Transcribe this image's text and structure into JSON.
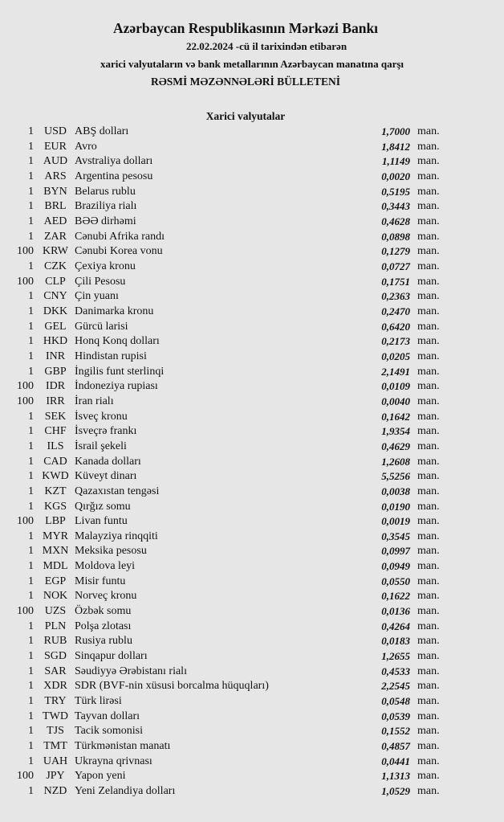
{
  "header": {
    "title": "Azərbaycan Respublikasının Mərkəzi Bankı",
    "date_line": "22.02.2024  -cü il tarixindən etibarən",
    "subtitle": "xarici valyutaların və bank metallarının Azərbaycan manatına qarşı",
    "bulletin": "RƏSMİ MƏZƏNNƏLƏRİ BÜLLETENİ",
    "section": "Xarici valyutalar"
  },
  "rates": [
    {
      "nominal": "1",
      "code": "USD",
      "name": "ABŞ dolları",
      "value": "1,7000",
      "unit": "man."
    },
    {
      "nominal": "1",
      "code": "EUR",
      "name": "Avro",
      "value": "1,8412",
      "unit": "man."
    },
    {
      "nominal": "1",
      "code": "AUD",
      "name": "Avstraliya dolları",
      "value": "1,1149",
      "unit": "man."
    },
    {
      "nominal": "1",
      "code": "ARS",
      "name": "Argentina pesosu",
      "value": "0,0020",
      "unit": "man."
    },
    {
      "nominal": "1",
      "code": "BYN",
      "name": "Belarus rublu",
      "value": "0,5195",
      "unit": "man."
    },
    {
      "nominal": "1",
      "code": "BRL",
      "name": "Braziliya rialı",
      "value": "0,3443",
      "unit": "man."
    },
    {
      "nominal": "1",
      "code": "AED",
      "name": "BƏƏ dirhəmi",
      "value": "0,4628",
      "unit": "man."
    },
    {
      "nominal": "1",
      "code": "ZAR",
      "name": "Cənubi Afrika randı",
      "value": "0,0898",
      "unit": "man."
    },
    {
      "nominal": "100",
      "code": "KRW",
      "name": "Cənubi Korea vonu",
      "value": "0,1279",
      "unit": "man."
    },
    {
      "nominal": "1",
      "code": "CZK",
      "name": "Çexiya kronu",
      "value": "0,0727",
      "unit": "man."
    },
    {
      "nominal": "100",
      "code": "CLP",
      "name": "Çili Pesosu",
      "value": "0,1751",
      "unit": "man."
    },
    {
      "nominal": "1",
      "code": "CNY",
      "name": "Çin yuanı",
      "value": "0,2363",
      "unit": "man."
    },
    {
      "nominal": "1",
      "code": "DKK",
      "name": "Danimarka kronu",
      "value": "0,2470",
      "unit": "man."
    },
    {
      "nominal": "1",
      "code": "GEL",
      "name": "Gürcü larisi",
      "value": "0,6420",
      "unit": "man."
    },
    {
      "nominal": "1",
      "code": "HKD",
      "name": "Honq Konq dolları",
      "value": "0,2173",
      "unit": "man."
    },
    {
      "nominal": "1",
      "code": "INR",
      "name": "Hindistan rupisi",
      "value": "0,0205",
      "unit": "man."
    },
    {
      "nominal": "1",
      "code": "GBP",
      "name": "İngilis funt sterlinqi",
      "value": "2,1491",
      "unit": "man."
    },
    {
      "nominal": "100",
      "code": "IDR",
      "name": "İndoneziya rupiası",
      "value": "0,0109",
      "unit": "man."
    },
    {
      "nominal": "100",
      "code": "IRR",
      "name": "İran rialı",
      "value": "0,0040",
      "unit": "man."
    },
    {
      "nominal": "1",
      "code": "SEK",
      "name": "İsveç kronu",
      "value": "0,1642",
      "unit": "man."
    },
    {
      "nominal": "1",
      "code": "CHF",
      "name": "İsveçrə frankı",
      "value": "1,9354",
      "unit": "man."
    },
    {
      "nominal": "1",
      "code": "ILS",
      "name": "İsrail şekeli",
      "value": "0,4629",
      "unit": "man."
    },
    {
      "nominal": "1",
      "code": "CAD",
      "name": "Kanada dolları",
      "value": "1,2608",
      "unit": "man."
    },
    {
      "nominal": "1",
      "code": "KWD",
      "name": "Küveyt dinarı",
      "value": "5,5256",
      "unit": "man."
    },
    {
      "nominal": "1",
      "code": "KZT",
      "name": "Qazaxıstan tengəsi",
      "value": "0,0038",
      "unit": "man."
    },
    {
      "nominal": "1",
      "code": "KGS",
      "name": "Qırğız somu",
      "value": "0,0190",
      "unit": "man."
    },
    {
      "nominal": "100",
      "code": "LBP",
      "name": "Livan funtu",
      "value": "0,0019",
      "unit": "man."
    },
    {
      "nominal": "1",
      "code": "MYR",
      "name": "Malayziya rinqqiti",
      "value": "0,3545",
      "unit": "man."
    },
    {
      "nominal": "1",
      "code": "MXN",
      "name": "Meksika pesosu",
      "value": "0,0997",
      "unit": "man."
    },
    {
      "nominal": "1",
      "code": "MDL",
      "name": "Moldova leyi",
      "value": "0,0949",
      "unit": "man."
    },
    {
      "nominal": "1",
      "code": "EGP",
      "name": "Misir funtu",
      "value": "0,0550",
      "unit": "man."
    },
    {
      "nominal": "1",
      "code": "NOK",
      "name": "Norveç kronu",
      "value": "0,1622",
      "unit": "man."
    },
    {
      "nominal": "100",
      "code": "UZS",
      "name": "Özbək somu",
      "value": "0,0136",
      "unit": "man."
    },
    {
      "nominal": "1",
      "code": "PLN",
      "name": "Polşa zlotası",
      "value": "0,4264",
      "unit": "man."
    },
    {
      "nominal": "1",
      "code": "RUB",
      "name": "Rusiya rublu",
      "value": "0,0183",
      "unit": "man."
    },
    {
      "nominal": "1",
      "code": "SGD",
      "name": "Sinqapur dolları",
      "value": "1,2655",
      "unit": "man."
    },
    {
      "nominal": "1",
      "code": "SAR",
      "name": "Səudiyyə Ərəbistanı rialı",
      "value": "0,4533",
      "unit": "man."
    },
    {
      "nominal": "1",
      "code": "XDR",
      "name": "SDR (BVF-nin xüsusi borcalma hüquqları)",
      "value": "2,2545",
      "unit": "man."
    },
    {
      "nominal": "1",
      "code": "TRY",
      "name": "Türk lirəsi",
      "value": "0,0548",
      "unit": "man."
    },
    {
      "nominal": "1",
      "code": "TWD",
      "name": "Tayvan dolları",
      "value": "0,0539",
      "unit": "man."
    },
    {
      "nominal": "1",
      "code": "TJS",
      "name": "Tacik somonisi",
      "value": "0,1552",
      "unit": "man."
    },
    {
      "nominal": "1",
      "code": "TMT",
      "name": "Türkmənistan manatı",
      "value": "0,4857",
      "unit": "man."
    },
    {
      "nominal": "1",
      "code": "UAH",
      "name": "Ukrayna qrivnası",
      "value": "0,0441",
      "unit": "man."
    },
    {
      "nominal": "100",
      "code": "JPY",
      "name": "Yapon yeni",
      "value": "1,1313",
      "unit": "man."
    },
    {
      "nominal": "1",
      "code": "NZD",
      "name": "Yeni Zelandiya dolları",
      "value": "1,0529",
      "unit": "man."
    }
  ]
}
